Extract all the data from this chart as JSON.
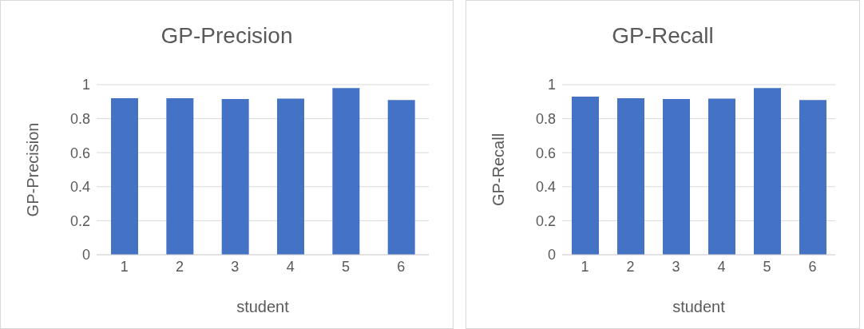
{
  "chart_data": [
    {
      "type": "bar",
      "title": "GP-Precision",
      "xlabel": "student",
      "ylabel": "GP-Precision",
      "categories": [
        "1",
        "2",
        "3",
        "4",
        "5",
        "6"
      ],
      "values": [
        0.92,
        0.92,
        0.915,
        0.918,
        0.98,
        0.91
      ],
      "color": "#4472c4",
      "ylim": [
        0,
        1
      ],
      "yticks": [
        0,
        0.2,
        0.4,
        0.6,
        0.8,
        1
      ],
      "grid": "y",
      "legend": false
    },
    {
      "type": "bar",
      "title": "GP-Recall",
      "xlabel": "student",
      "ylabel": "GP-Recall",
      "categories": [
        "1",
        "2",
        "3",
        "4",
        "5",
        "6"
      ],
      "values": [
        0.93,
        0.92,
        0.915,
        0.918,
        0.98,
        0.91
      ],
      "color": "#4472c4",
      "ylim": [
        0,
        1
      ],
      "yticks": [
        0,
        0.2,
        0.4,
        0.6,
        0.8,
        1
      ],
      "grid": "y",
      "legend": false
    }
  ]
}
